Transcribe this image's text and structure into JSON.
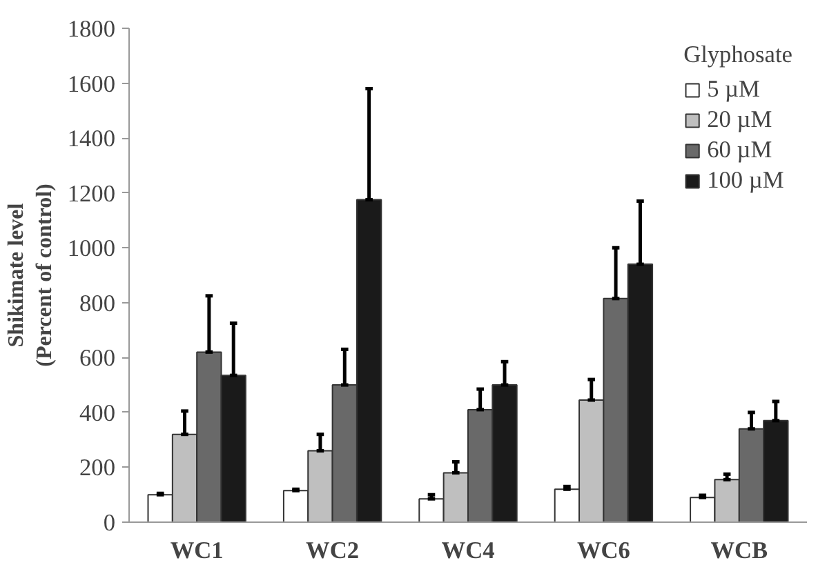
{
  "chart_data": {
    "type": "bar",
    "ylabel": "Shikimate level\n(Percent of control)",
    "legend_title": "Glyphosate",
    "categories": [
      "WC1",
      "WC2",
      "WC4",
      "WC6",
      "WCB"
    ],
    "series": [
      {
        "name": "5 µM",
        "color": "#ffffff",
        "values": [
          100,
          115,
          85,
          120,
          90
        ],
        "errors": [
          [
            100,
            105
          ],
          [
            115,
            120
          ],
          [
            85,
            100
          ],
          [
            120,
            130
          ],
          [
            90,
            98
          ]
        ]
      },
      {
        "name": "20 µM",
        "color": "#bfbfbf",
        "values": [
          320,
          260,
          180,
          445,
          155
        ],
        "errors": [
          [
            320,
            405
          ],
          [
            260,
            320
          ],
          [
            180,
            220
          ],
          [
            445,
            520
          ],
          [
            155,
            175
          ]
        ]
      },
      {
        "name": "60 µM",
        "color": "#696969",
        "values": [
          620,
          500,
          410,
          815,
          340
        ],
        "errors": [
          [
            620,
            825
          ],
          [
            500,
            630
          ],
          [
            410,
            485
          ],
          [
            815,
            1000
          ],
          [
            340,
            400
          ]
        ]
      },
      {
        "name": "100 µM",
        "color": "#1a1a1a",
        "values": [
          535,
          1175,
          500,
          940,
          370
        ],
        "errors": [
          [
            535,
            725
          ],
          [
            1175,
            1580
          ],
          [
            500,
            585
          ],
          [
            940,
            1170
          ],
          [
            370,
            440
          ]
        ]
      }
    ],
    "ylim": [
      0,
      1800
    ],
    "yticks": [
      0,
      200,
      400,
      600,
      800,
      1000,
      1200,
      1400,
      1600,
      1800
    ],
    "grid": false,
    "legend": "top right"
  }
}
